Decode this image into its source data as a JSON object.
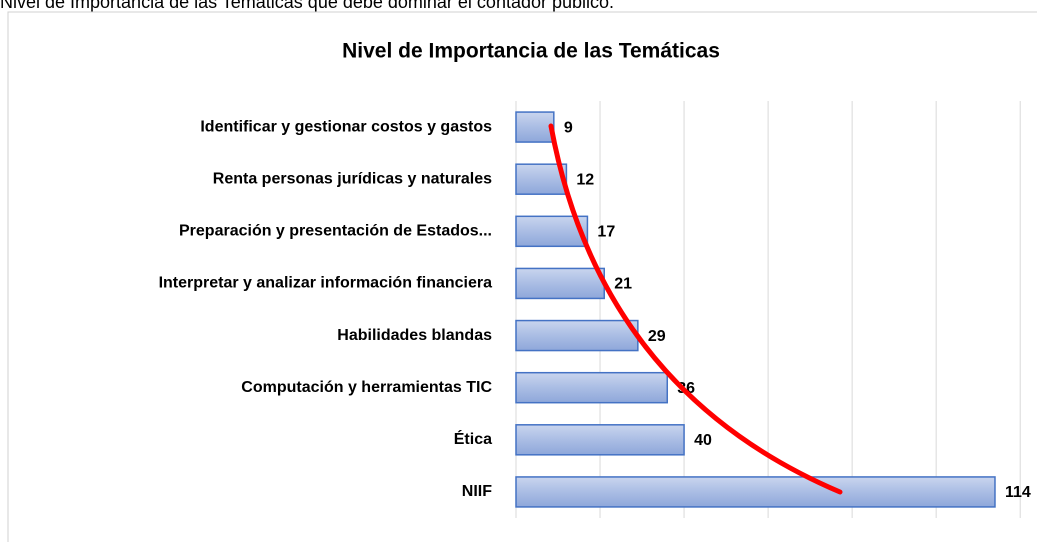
{
  "caption": "Nivel de Importancia de las Temáticas que debe dominar el contador público.",
  "chart_data": {
    "type": "bar",
    "orientation": "horizontal",
    "title": "Nivel de Importancia  de las Temáticas",
    "categories": [
      "Identificar y gestionar costos y gastos",
      "Renta personas jurídicas y naturales",
      "Preparación y presentación de Estados...",
      "Interpretar y analizar información financiera",
      "Habilidades blandas",
      "Computación y herramientas TIC",
      "Ética",
      "NIIF"
    ],
    "values": [
      9,
      12,
      17,
      21,
      29,
      36,
      40,
      114
    ],
    "color": "#4472c4",
    "xlim": [
      0,
      124
    ],
    "xticks": [
      0,
      20,
      40,
      60,
      80,
      100,
      120
    ],
    "grid": true
  }
}
